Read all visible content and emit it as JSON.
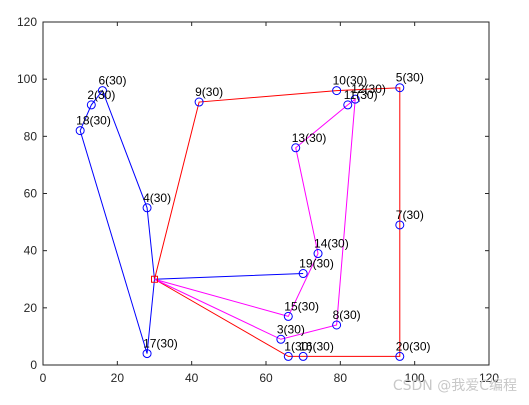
{
  "chart_data": {
    "type": "line",
    "title": "",
    "xlabel": "",
    "ylabel": "",
    "xlim": [
      0,
      120
    ],
    "ylim": [
      0,
      120
    ],
    "xticks": [
      0,
      20,
      40,
      60,
      80,
      100,
      120
    ],
    "yticks": [
      0,
      20,
      40,
      60,
      80,
      100,
      120
    ],
    "grid": false,
    "depot": {
      "x": 30,
      "y": 30,
      "marker": "square",
      "color": "#ff0000"
    },
    "customers": [
      {
        "label": "1(30)",
        "x": 66,
        "y": 3
      },
      {
        "label": "2(30)",
        "x": 13,
        "y": 91
      },
      {
        "label": "3(30)",
        "x": 64,
        "y": 9
      },
      {
        "label": "4(30)",
        "x": 28,
        "y": 55
      },
      {
        "label": "5(30)",
        "x": 96,
        "y": 97
      },
      {
        "label": "6(30)",
        "x": 16,
        "y": 96
      },
      {
        "label": "7(30)",
        "x": 96,
        "y": 49
      },
      {
        "label": "8(30)",
        "x": 79,
        "y": 14
      },
      {
        "label": "9(30)",
        "x": 42,
        "y": 92
      },
      {
        "label": "10(30)",
        "x": 79,
        "y": 96
      },
      {
        "label": "11(30)",
        "x": 82,
        "y": 91
      },
      {
        "label": "12(30)",
        "x": 84,
        "y": 93
      },
      {
        "label": "13(30)",
        "x": 68,
        "y": 76
      },
      {
        "label": "14(30)",
        "x": 74,
        "y": 39
      },
      {
        "label": "15(30)",
        "x": 66,
        "y": 17
      },
      {
        "label": "16(30)",
        "x": 70,
        "y": 3
      },
      {
        "label": "17(30)",
        "x": 28,
        "y": 4
      },
      {
        "label": "18(30)",
        "x": 10,
        "y": 82
      },
      {
        "label": "19(30)",
        "x": 70,
        "y": 32
      },
      {
        "label": "20(30)",
        "x": 96,
        "y": 3
      }
    ],
    "routes": [
      {
        "color": "#0000ff",
        "path": [
          [
            30,
            30
          ],
          [
            70,
            32
          ],
          [
            30,
            30
          ],
          [
            28,
            4
          ],
          [
            10,
            82
          ],
          [
            13,
            91
          ],
          [
            16,
            96
          ],
          [
            28,
            55
          ],
          [
            30,
            30
          ]
        ]
      },
      {
        "color": "#ff0000",
        "path": [
          [
            30,
            30
          ],
          [
            42,
            92
          ],
          [
            79,
            96
          ],
          [
            96,
            97
          ],
          [
            96,
            49
          ],
          [
            96,
            3
          ],
          [
            70,
            3
          ],
          [
            66,
            3
          ],
          [
            30,
            30
          ]
        ]
      },
      {
        "color": "#ff00ff",
        "path": [
          [
            30,
            30
          ],
          [
            66,
            17
          ],
          [
            74,
            39
          ],
          [
            68,
            76
          ],
          [
            82,
            91
          ],
          [
            84,
            93
          ],
          [
            79,
            14
          ],
          [
            64,
            9
          ],
          [
            30,
            30
          ]
        ]
      }
    ],
    "point_marker": {
      "shape": "circle",
      "color": "#0000ff"
    }
  },
  "watermark": "CSDN @我爱C编程"
}
